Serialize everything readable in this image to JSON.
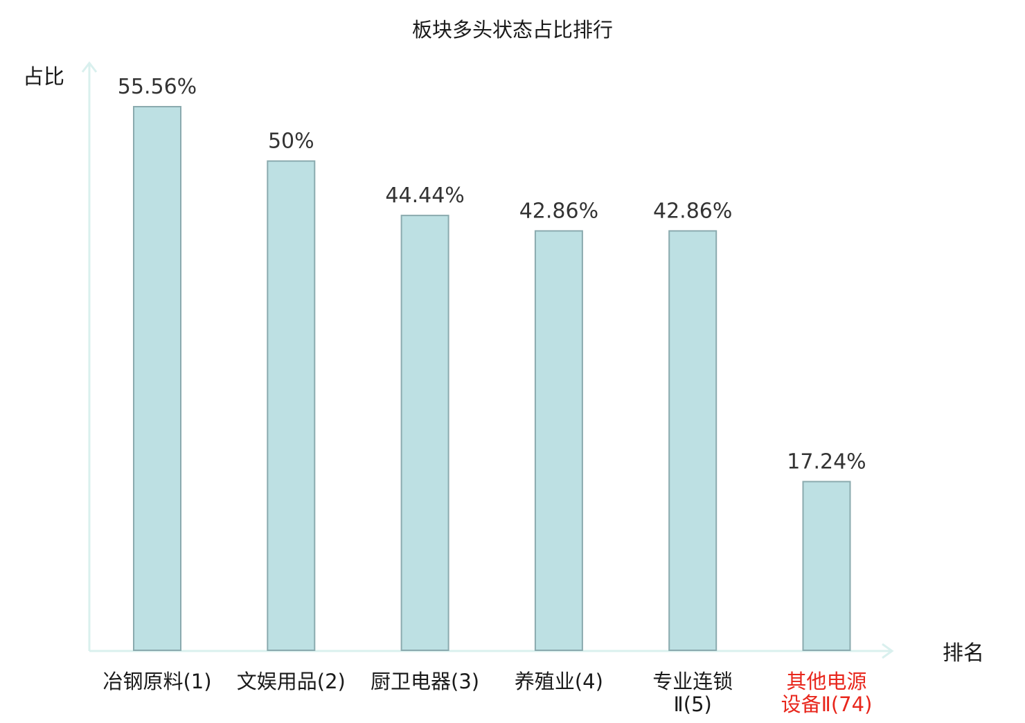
{
  "chart_data": {
    "type": "bar",
    "title": "板块多头状态占比排行",
    "ylabel": "占比",
    "xlabel": "排名",
    "categories": [
      [
        "冶钢原料(1)"
      ],
      [
        "文娱用品(2)"
      ],
      [
        "厨卫电器(3)"
      ],
      [
        "养殖业(4)"
      ],
      [
        "专业连锁",
        "Ⅱ(5)"
      ],
      [
        "其他电源",
        "设备Ⅱ(74)"
      ]
    ],
    "values": [
      55.56,
      50,
      44.44,
      42.86,
      42.86,
      17.24
    ],
    "value_labels": [
      "55.56%",
      "50%",
      "44.44%",
      "42.86%",
      "42.86%",
      "17.24%"
    ],
    "highlight_index": 5,
    "ylim": [
      0,
      60
    ],
    "grid": false,
    "colors": {
      "bar_fill": "#bde0e3",
      "bar_stroke": "#8aaaae",
      "axis": "#d9f0ee",
      "text": "#333333",
      "highlight_text": "#e8261c"
    }
  }
}
